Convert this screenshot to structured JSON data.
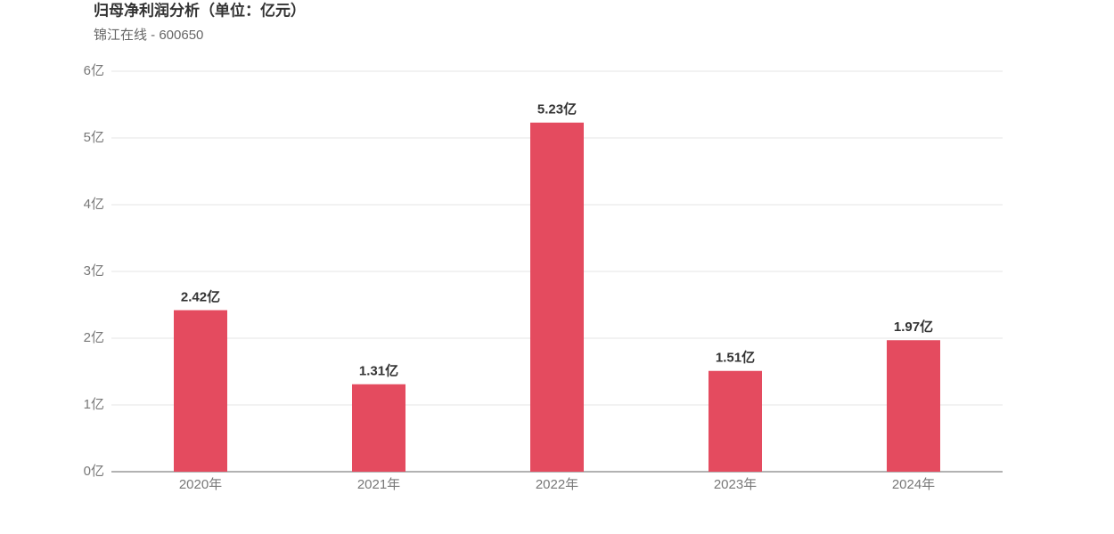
{
  "chart_data": {
    "type": "bar",
    "title": "归母净利润分析（单位：亿元）",
    "subtitle": "锦江在线 - 600650",
    "categories": [
      "2020年",
      "2021年",
      "2022年",
      "2023年",
      "2024年"
    ],
    "values": [
      2.42,
      1.31,
      5.23,
      1.51,
      1.97
    ],
    "value_labels": [
      "2.42亿",
      "1.31亿",
      "5.23亿",
      "1.51亿",
      "1.97亿"
    ],
    "color": "#e44b5f",
    "ylim": [
      0,
      6
    ],
    "yticks": [
      {
        "value": 0,
        "label": "0亿"
      },
      {
        "value": 1,
        "label": "1亿"
      },
      {
        "value": 2,
        "label": "2亿"
      },
      {
        "value": 3,
        "label": "3亿"
      },
      {
        "value": 4,
        "label": "4亿"
      },
      {
        "value": 5,
        "label": "5亿"
      },
      {
        "value": 6,
        "label": "6亿"
      }
    ],
    "grid": true
  }
}
